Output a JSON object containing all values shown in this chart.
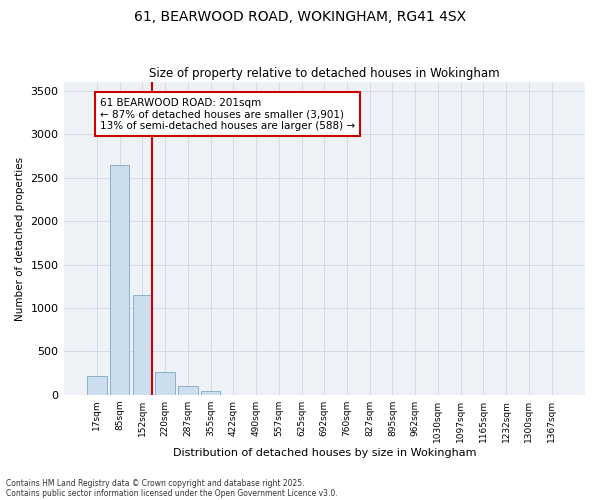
{
  "title": "61, BEARWOOD ROAD, WOKINGHAM, RG41 4SX",
  "subtitle": "Size of property relative to detached houses in Wokingham",
  "xlabel": "Distribution of detached houses by size in Wokingham",
  "ylabel": "Number of detached properties",
  "bar_labels": [
    "17sqm",
    "85sqm",
    "152sqm",
    "220sqm",
    "287sqm",
    "355sqm",
    "422sqm",
    "490sqm",
    "557sqm",
    "625sqm",
    "692sqm",
    "760sqm",
    "827sqm",
    "895sqm",
    "962sqm",
    "1030sqm",
    "1097sqm",
    "1165sqm",
    "1232sqm",
    "1300sqm",
    "1367sqm"
  ],
  "bar_values": [
    220,
    2650,
    1150,
    260,
    100,
    50,
    5,
    0,
    0,
    0,
    0,
    0,
    0,
    0,
    0,
    0,
    0,
    0,
    0,
    0,
    0
  ],
  "bar_color": "#ccdded",
  "bar_edge_color": "#7aaac8",
  "ylim": [
    0,
    3600
  ],
  "yticks": [
    0,
    500,
    1000,
    1500,
    2000,
    2500,
    3000,
    3500
  ],
  "annotation_text": "61 BEARWOOD ROAD: 201sqm\n← 87% of detached houses are smaller (3,901)\n13% of semi-detached houses are larger (588) →",
  "annotation_box_color": "#ffffff",
  "annotation_border_color": "#cc0000",
  "vline_color": "#cc0000",
  "grid_color": "#d0dce8",
  "background_color": "#ffffff",
  "plot_bg_color": "#eef2f7",
  "footer_line1": "Contains HM Land Registry data © Crown copyright and database right 2025.",
  "footer_line2": "Contains public sector information licensed under the Open Government Licence v3.0."
}
